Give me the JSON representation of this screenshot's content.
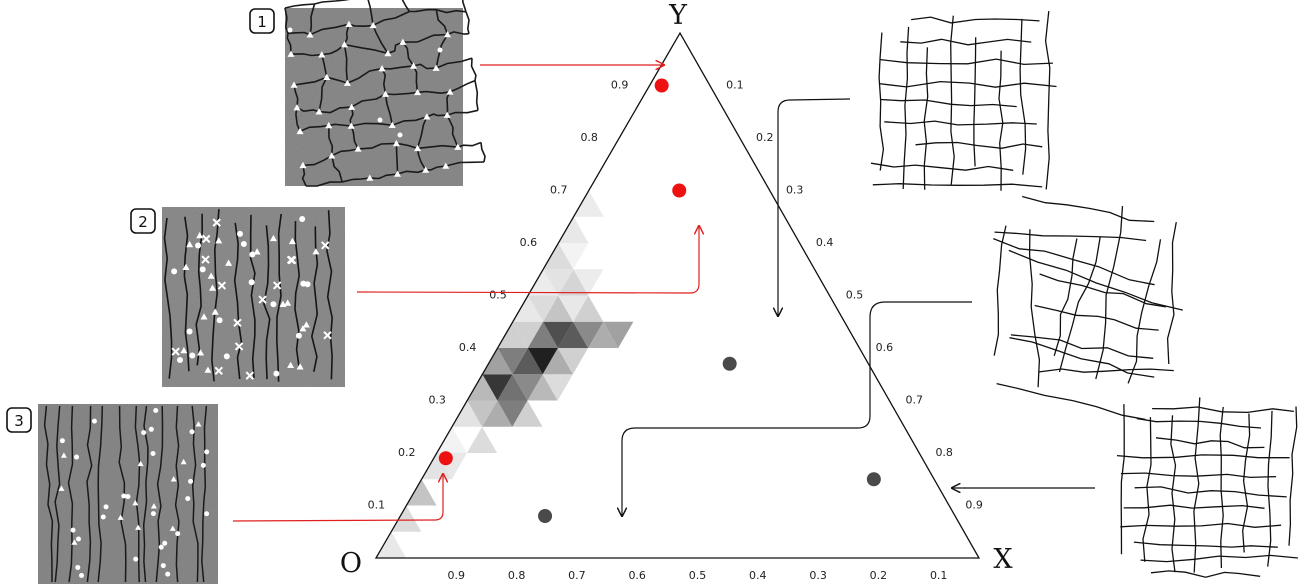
{
  "vertices": {
    "top": "Y",
    "right": "X",
    "left": "O"
  },
  "panel_labels": [
    "1",
    "2",
    "3"
  ],
  "ticks": {
    "left_edge": [
      "0.1",
      "0.2",
      "0.3",
      "0.4",
      "0.5",
      "0.6",
      "0.7",
      "0.8",
      "0.9"
    ],
    "right_edge": [
      "0.1",
      "0.2",
      "0.3",
      "0.4",
      "0.5",
      "0.6",
      "0.7",
      "0.8",
      "0.9"
    ],
    "bottom_edge": [
      "0.9",
      "0.8",
      "0.7",
      "0.6",
      "0.5",
      "0.4",
      "0.3",
      "0.2",
      "0.1"
    ]
  },
  "colors": {
    "red_marker": "#ee1111",
    "gray_marker": "#4a4a4a",
    "red_arrow": "#e02020",
    "black_arrow": "#111111",
    "micrograph_bg": "#8c8c8c"
  },
  "chart_data": {
    "type": "ternary",
    "vertices": [
      "Y",
      "X",
      "O"
    ],
    "red_points": [
      {
        "panel": "1",
        "y": 0.9,
        "x": 0.02
      },
      {
        "panel": "2",
        "y": 0.7,
        "x": 0.15
      },
      {
        "panel": "3",
        "y": 0.19,
        "x": 0.02
      }
    ],
    "gray_points": [
      {
        "y": 0.37,
        "x": 0.4
      },
      {
        "y": 0.08,
        "x": 0.24
      },
      {
        "y": 0.15,
        "x": 0.75
      }
    ],
    "density_triangles": [
      {
        "i": 0,
        "j": 0,
        "up": true,
        "v": 0.1
      },
      {
        "i": 1,
        "j": 0,
        "up": true,
        "v": 0.15
      },
      {
        "i": 2,
        "j": 0,
        "up": true,
        "v": 0.25
      },
      {
        "i": 3,
        "j": 0,
        "up": true,
        "v": 0.12
      },
      {
        "i": 3,
        "j": 0,
        "up": false,
        "v": 0.1
      },
      {
        "i": 4,
        "j": 0,
        "up": true,
        "v": 0.05
      },
      {
        "i": 4,
        "j": 1,
        "up": true,
        "v": 0.15
      },
      {
        "i": 5,
        "j": 0,
        "up": true,
        "v": 0.12
      },
      {
        "i": 5,
        "j": 1,
        "up": true,
        "v": 0.35
      },
      {
        "i": 5,
        "j": 2,
        "up": true,
        "v": 0.2
      },
      {
        "i": 5,
        "j": 0,
        "up": false,
        "v": 0.25
      },
      {
        "i": 5,
        "j": 1,
        "up": false,
        "v": 0.55
      },
      {
        "i": 6,
        "j": 0,
        "up": true,
        "v": 0.3
      },
      {
        "i": 6,
        "j": 1,
        "up": true,
        "v": 0.6
      },
      {
        "i": 6,
        "j": 2,
        "up": true,
        "v": 0.3
      },
      {
        "i": 6,
        "j": 0,
        "up": false,
        "v": 0.85
      },
      {
        "i": 6,
        "j": 1,
        "up": false,
        "v": 0.5
      },
      {
        "i": 6,
        "j": 2,
        "up": false,
        "v": 0.15
      },
      {
        "i": 7,
        "j": 0,
        "up": true,
        "v": 0.4
      },
      {
        "i": 7,
        "j": 1,
        "up": true,
        "v": 0.7
      },
      {
        "i": 7,
        "j": 2,
        "up": true,
        "v": 0.35
      },
      {
        "i": 7,
        "j": 0,
        "up": false,
        "v": 0.55
      },
      {
        "i": 7,
        "j": 1,
        "up": false,
        "v": 0.95
      },
      {
        "i": 7,
        "j": 2,
        "up": false,
        "v": 0.2
      },
      {
        "i": 8,
        "j": 0,
        "up": true,
        "v": 0.2
      },
      {
        "i": 8,
        "j": 1,
        "up": true,
        "v": 0.55
      },
      {
        "i": 8,
        "j": 2,
        "up": true,
        "v": 0.7
      },
      {
        "i": 8,
        "j": 3,
        "up": true,
        "v": 0.35
      },
      {
        "i": 8,
        "j": 0,
        "up": false,
        "v": 0.2
      },
      {
        "i": 8,
        "j": 1,
        "up": false,
        "v": 0.75
      },
      {
        "i": 8,
        "j": 2,
        "up": false,
        "v": 0.5
      },
      {
        "i": 8,
        "j": 3,
        "up": false,
        "v": 0.4
      },
      {
        "i": 9,
        "j": 0,
        "up": true,
        "v": 0.1
      },
      {
        "i": 9,
        "j": 1,
        "up": true,
        "v": 0.25
      },
      {
        "i": 9,
        "j": 2,
        "up": true,
        "v": 0.2
      },
      {
        "i": 9,
        "j": 0,
        "up": false,
        "v": 0.15
      },
      {
        "i": 9,
        "j": 1,
        "up": false,
        "v": 0.1
      },
      {
        "i": 10,
        "j": 0,
        "up": true,
        "v": 0.08
      },
      {
        "i": 10,
        "j": 1,
        "up": true,
        "v": 0.18
      },
      {
        "i": 10,
        "j": 0,
        "up": false,
        "v": 0.12
      },
      {
        "i": 10,
        "j": 1,
        "up": false,
        "v": 0.08
      },
      {
        "i": 11,
        "j": 0,
        "up": true,
        "v": 0.15
      },
      {
        "i": 11,
        "j": 0,
        "up": false,
        "v": 0.05
      },
      {
        "i": 12,
        "j": 0,
        "up": true,
        "v": 0.1
      },
      {
        "i": 13,
        "j": 0,
        "up": true,
        "v": 0.08
      }
    ]
  }
}
